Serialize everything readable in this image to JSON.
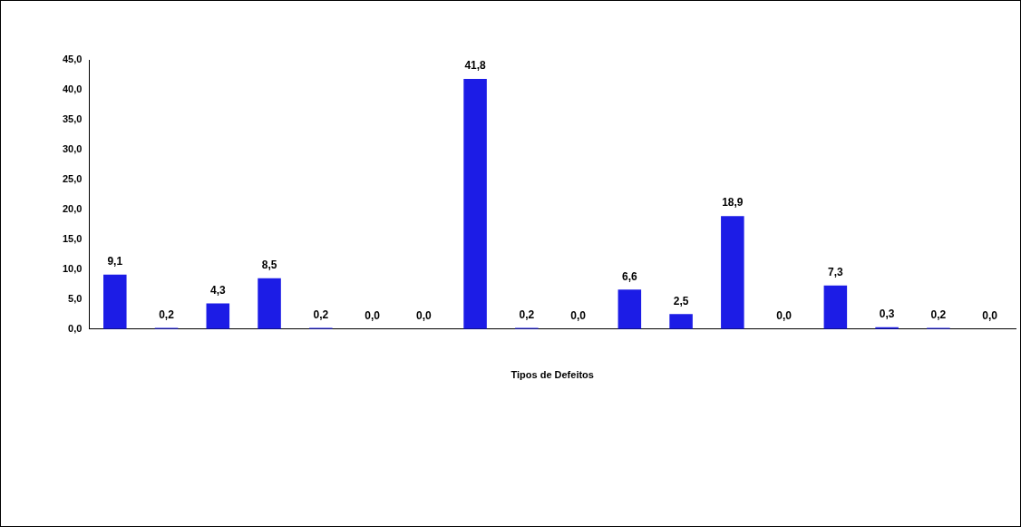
{
  "chart_data": {
    "type": "bar",
    "xlabel": "Tipos de Defeitos",
    "categories": [
      null,
      null,
      null,
      null,
      null,
      null,
      null,
      null,
      null,
      null,
      null,
      null,
      null,
      null,
      null,
      null,
      null,
      null
    ],
    "values": [
      9.1,
      0.2,
      4.3,
      8.5,
      0.2,
      0.0,
      0.0,
      41.8,
      0.2,
      0.0,
      6.6,
      2.5,
      18.9,
      0.0,
      7.3,
      0.3,
      0.2,
      0.0
    ],
    "value_labels": [
      "9,1",
      "0,2",
      "4,3",
      "8,5",
      "0,2",
      "0,0",
      "0,0",
      "41,8",
      "0,2",
      "0,0",
      "6,6",
      "2,5",
      "18,9",
      "0,0",
      "7,3",
      "0,3",
      "0,2",
      "0,0"
    ],
    "color": "#1c1ce6",
    "ylim": [
      0,
      45
    ],
    "yticks": [
      {
        "value": 0,
        "label": "0,0"
      },
      {
        "value": 5,
        "label": "5,0"
      },
      {
        "value": 10,
        "label": "10,0"
      },
      {
        "value": 15,
        "label": "15,0"
      },
      {
        "value": 20,
        "label": "20,0"
      },
      {
        "value": 25,
        "label": "25,0"
      },
      {
        "value": 30,
        "label": "30,0"
      },
      {
        "value": 35,
        "label": "35,0"
      },
      {
        "value": 40,
        "label": "40,0"
      },
      {
        "value": 45,
        "label": "45,0"
      }
    ],
    "tick_labels": "y",
    "grid": false,
    "legend": false
  }
}
